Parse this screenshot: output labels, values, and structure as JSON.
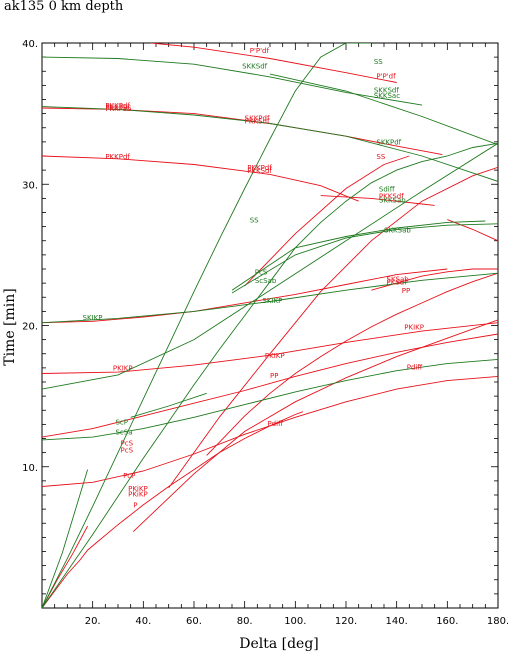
{
  "chart_data": {
    "type": "line",
    "title": "ak135   0 km depth",
    "xlabel": "Delta  [deg]",
    "ylabel": "Time [min]",
    "xlim": [
      0,
      180
    ],
    "ylim": [
      0,
      40
    ],
    "x_ticks": [
      20,
      40,
      60,
      80,
      100,
      120,
      140,
      160,
      180
    ],
    "x_tick_labels": [
      "20.",
      "40.",
      "60.",
      "80.",
      "100.",
      "120.",
      "140.",
      "160.",
      "180."
    ],
    "y_ticks": [
      10,
      20,
      30,
      40
    ],
    "y_tick_labels": [
      "10.",
      "20.",
      "30.",
      "40."
    ],
    "grid": false,
    "colors": {
      "P": "#e8101a",
      "S": "#1f7a1f",
      "axis": "#000000"
    },
    "series": [
      {
        "phase": "P",
        "x": [
          0,
          5,
          10,
          15,
          18,
          22,
          30,
          40,
          50,
          60,
          70,
          80,
          90,
          100,
          103
        ],
        "y": [
          0,
          1.2,
          2.4,
          3.4,
          4.1,
          4.7,
          5.9,
          7.3,
          8.6,
          9.8,
          11.0,
          12.0,
          12.9,
          13.7,
          13.9
        ]
      },
      {
        "phase": "P",
        "x": [
          36,
          60,
          80,
          100,
          120,
          140,
          160,
          180
        ],
        "y": [
          5.4,
          9.5,
          12.5,
          14.6,
          16.3,
          17.8,
          19.1,
          20.4
        ]
      },
      {
        "phase": "P",
        "x": [
          65,
          80,
          90,
          100,
          110,
          120,
          130,
          140,
          150,
          160,
          170,
          180
        ],
        "y": [
          10.8,
          13.6,
          15.2,
          16.6,
          17.8,
          18.9,
          19.9,
          20.8,
          21.6,
          22.4,
          23.1,
          23.7
        ]
      },
      {
        "phase": "P",
        "x": [
          0,
          20,
          40,
          60,
          80,
          100,
          120,
          140,
          160,
          180
        ],
        "y": [
          8.6,
          8.9,
          9.7,
          10.9,
          12.3,
          13.5,
          14.6,
          15.5,
          16.1,
          16.4
        ]
      },
      {
        "phase": "P",
        "x": [
          0,
          20,
          40,
          60,
          80,
          100,
          120,
          140,
          160,
          180
        ],
        "y": [
          12.1,
          12.7,
          13.6,
          14.5,
          15.4,
          16.4,
          17.3,
          18.1,
          18.8,
          19.4
        ]
      },
      {
        "phase": "P",
        "x": [
          0,
          30,
          60,
          90,
          120,
          150,
          180
        ],
        "y": [
          16.6,
          16.7,
          17.2,
          17.9,
          18.8,
          19.6,
          20.2
        ]
      },
      {
        "phase": "P",
        "x": [
          130,
          140,
          150,
          160,
          170,
          180
        ],
        "y": [
          22.5,
          23.0,
          23.5,
          23.8,
          24.0,
          24.0
        ]
      },
      {
        "phase": "P",
        "x": [
          0,
          20,
          40,
          60,
          80,
          100,
          120,
          140,
          160
        ],
        "y": [
          20.2,
          20.3,
          20.6,
          21.0,
          21.6,
          22.2,
          22.9,
          23.6,
          24.0
        ]
      },
      {
        "phase": "P",
        "x": [
          0,
          30,
          60,
          90,
          110,
          125
        ],
        "y": [
          32.0,
          31.8,
          31.4,
          30.7,
          29.9,
          28.8
        ]
      },
      {
        "phase": "P",
        "x": [
          110,
          130,
          150,
          155
        ],
        "y": [
          29.2,
          29.0,
          28.6,
          28.5
        ]
      },
      {
        "phase": "P",
        "x": [
          0,
          30,
          60,
          90,
          120,
          140,
          158
        ],
        "y": [
          35.4,
          35.3,
          35.0,
          34.3,
          33.4,
          32.7,
          32.1
        ]
      },
      {
        "phase": "P",
        "x": [
          43,
          60,
          90,
          120,
          140
        ],
        "y": [
          40.0,
          39.7,
          38.9,
          37.9,
          37.2
        ]
      },
      {
        "phase": "P",
        "x": [
          50,
          70,
          90,
          110,
          130,
          150,
          170,
          180
        ],
        "y": [
          8.5,
          13.5,
          18.0,
          22.4,
          26.0,
          28.8,
          30.6,
          31.2
        ]
      },
      {
        "phase": "P",
        "x": [
          80,
          100,
          120,
          135,
          145
        ],
        "y": [
          22.8,
          26.5,
          29.7,
          31.4,
          32.0
        ]
      },
      {
        "phase": "P",
        "x": [
          0,
          6,
          12,
          18
        ],
        "y": [
          0,
          2.0,
          3.8,
          5.8
        ]
      },
      {
        "phase": "P",
        "x": [
          160,
          170,
          180
        ],
        "y": [
          27.5,
          26.8,
          26.0
        ]
      },
      {
        "phase": "S",
        "x": [
          0,
          10,
          20,
          30,
          40,
          50,
          60,
          70,
          80,
          90,
          100,
          110,
          120,
          130
        ],
        "y": [
          0,
          3.5,
          7.2,
          11.0,
          14.8,
          18.6,
          22.4,
          26.1,
          29.7,
          33.2,
          36.6,
          39.0,
          40.0,
          40.0
        ]
      },
      {
        "phase": "S",
        "x": [
          0,
          10,
          20,
          30,
          40,
          50,
          60,
          70,
          80,
          90,
          100,
          110,
          120,
          130,
          140,
          150,
          160,
          170,
          180
        ],
        "y": [
          0,
          2.6,
          5.2,
          7.9,
          10.6,
          13.2,
          15.8,
          18.3,
          20.7,
          23.1,
          25.5,
          27.3,
          28.8,
          30.1,
          31.0,
          31.6,
          32.0,
          32.6,
          32.9
        ]
      },
      {
        "phase": "S",
        "x": [
          0,
          8,
          18
        ],
        "y": [
          0,
          3.9,
          9.8
        ]
      },
      {
        "phase": "S",
        "x": [
          35,
          50,
          65
        ],
        "y": [
          13.5,
          14.3,
          15.2
        ]
      },
      {
        "phase": "S",
        "x": [
          0,
          30,
          60,
          90,
          120,
          150,
          180
        ],
        "y": [
          15.5,
          16.5,
          19.0,
          22.5,
          26.0,
          29.5,
          32.9
        ]
      },
      {
        "phase": "S",
        "x": [
          0,
          30,
          60,
          90,
          120,
          150,
          180
        ],
        "y": [
          20.2,
          20.5,
          21.0,
          21.7,
          22.5,
          23.2,
          23.7
        ]
      },
      {
        "phase": "S",
        "x": [
          0,
          20,
          40,
          60,
          80,
          100,
          120,
          140,
          160,
          180
        ],
        "y": [
          11.9,
          12.1,
          12.7,
          13.5,
          14.4,
          15.3,
          16.1,
          16.8,
          17.3,
          17.6
        ]
      },
      {
        "phase": "S",
        "x": [
          75,
          100,
          120,
          140,
          160,
          180
        ],
        "y": [
          22.3,
          25.0,
          26.2,
          26.8,
          27.1,
          27.2
        ]
      },
      {
        "phase": "S",
        "x": [
          75,
          100,
          120,
          140,
          160,
          175
        ],
        "y": [
          22.5,
          25.5,
          26.3,
          26.9,
          27.3,
          27.4
        ]
      },
      {
        "phase": "S",
        "x": [
          0,
          30,
          60,
          90,
          120,
          150
        ],
        "y": [
          39.0,
          38.9,
          38.5,
          37.6,
          36.5,
          35.6
        ]
      },
      {
        "phase": "S",
        "x": [
          90,
          120,
          150,
          180
        ],
        "y": [
          37.8,
          36.6,
          34.8,
          32.8
        ]
      },
      {
        "phase": "S",
        "x": [
          0,
          30,
          60,
          90,
          120,
          150,
          180
        ],
        "y": [
          35.5,
          35.3,
          34.9,
          34.3,
          33.4,
          32.0,
          30.2
        ]
      }
    ],
    "phase_labels": [
      {
        "text": "P'P'df",
        "x": 82,
        "y": 39.3,
        "phase": "P"
      },
      {
        "text": "SKKSdf",
        "x": 79,
        "y": 38.2,
        "phase": "S"
      },
      {
        "text": "SS",
        "x": 131,
        "y": 38.5,
        "phase": "S"
      },
      {
        "text": "P'P'df",
        "x": 132,
        "y": 37.5,
        "phase": "P"
      },
      {
        "text": "SKKSdf",
        "x": 131,
        "y": 36.5,
        "phase": "S"
      },
      {
        "text": "SKKSac",
        "x": 131,
        "y": 36.1,
        "phase": "S"
      },
      {
        "text": "PKKPdf",
        "x": 25,
        "y": 35.4,
        "phase": "P"
      },
      {
        "text": "PKKPbc",
        "x": 25,
        "y": 35.3,
        "phase": "P"
      },
      {
        "text": "PKKPab",
        "x": 25,
        "y": 35.2,
        "phase": "P"
      },
      {
        "text": "SKKPdf",
        "x": 80,
        "y": 34.5,
        "phase": "P"
      },
      {
        "text": "PKKSdf",
        "x": 80,
        "y": 34.3,
        "phase": "P"
      },
      {
        "text": "SKKPdf",
        "x": 132,
        "y": 32.8,
        "phase": "S"
      },
      {
        "text": "PKKPdf",
        "x": 25,
        "y": 31.8,
        "phase": "P"
      },
      {
        "text": "SS",
        "x": 132,
        "y": 31.8,
        "phase": "P"
      },
      {
        "text": "PKKPdf",
        "x": 81,
        "y": 31.0,
        "phase": "P"
      },
      {
        "text": "PKKSdf",
        "x": 81,
        "y": 30.8,
        "phase": "P"
      },
      {
        "text": "Sdiff",
        "x": 133,
        "y": 29.5,
        "phase": "S"
      },
      {
        "text": "PKKSdf",
        "x": 133,
        "y": 29.0,
        "phase": "P"
      },
      {
        "text": "SKKSab",
        "x": 133,
        "y": 28.7,
        "phase": "S"
      },
      {
        "text": "SS",
        "x": 82,
        "y": 27.3,
        "phase": "S"
      },
      {
        "text": "SKKSab",
        "x": 135,
        "y": 26.6,
        "phase": "S"
      },
      {
        "text": "PcS",
        "x": 84,
        "y": 23.6,
        "phase": "S"
      },
      {
        "text": "ScSab",
        "x": 84,
        "y": 23.0,
        "phase": "S"
      },
      {
        "text": "SKSab",
        "x": 136,
        "y": 23.1,
        "phase": "P"
      },
      {
        "text": "PKSdf",
        "x": 136,
        "y": 22.9,
        "phase": "P"
      },
      {
        "text": "PP",
        "x": 142,
        "y": 22.3,
        "phase": "P"
      },
      {
        "text": "SKIKP",
        "x": 87,
        "y": 21.6,
        "phase": "S"
      },
      {
        "text": "SKIKP",
        "x": 16,
        "y": 20.4,
        "phase": "S"
      },
      {
        "text": "PKIKP",
        "x": 143,
        "y": 19.7,
        "phase": "P"
      },
      {
        "text": "PKIKP",
        "x": 88,
        "y": 17.7,
        "phase": "P"
      },
      {
        "text": "PKIKP",
        "x": 28,
        "y": 16.8,
        "phase": "P"
      },
      {
        "text": "PP",
        "x": 90,
        "y": 16.3,
        "phase": "P"
      },
      {
        "text": "Pdiff",
        "x": 144,
        "y": 16.9,
        "phase": "P"
      },
      {
        "text": "ScP",
        "x": 29,
        "y": 13.0,
        "phase": "S"
      },
      {
        "text": "ScSa",
        "x": 29,
        "y": 12.3,
        "phase": "S"
      },
      {
        "text": "PcS",
        "x": 31,
        "y": 11.5,
        "phase": "P"
      },
      {
        "text": "PcS",
        "x": 31,
        "y": 11.0,
        "phase": "P"
      },
      {
        "text": "Pdiff",
        "x": 89,
        "y": 12.9,
        "phase": "P"
      },
      {
        "text": "PcP",
        "x": 32,
        "y": 9.2,
        "phase": "P"
      },
      {
        "text": "PKiKP",
        "x": 34,
        "y": 8.3,
        "phase": "P"
      },
      {
        "text": "PKiKP",
        "x": 34,
        "y": 7.9,
        "phase": "P"
      },
      {
        "text": "P",
        "x": 36,
        "y": 7.1,
        "phase": "P"
      }
    ]
  }
}
